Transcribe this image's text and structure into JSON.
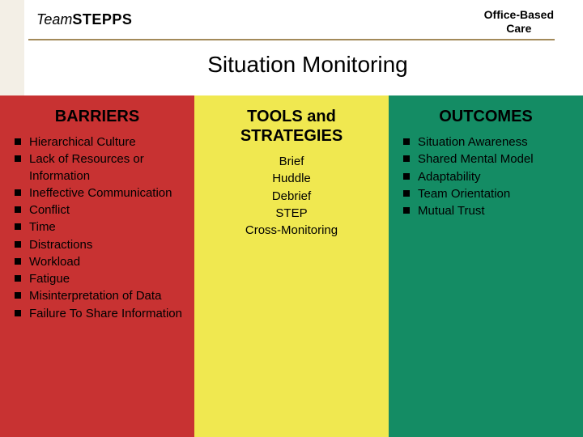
{
  "header": {
    "logo_team": "Team",
    "logo_stepps": "STEPPS",
    "right_line1": "Office-Based",
    "right_line2": "Care"
  },
  "title": "Situation Monitoring",
  "colors": {
    "barriers_bg": "#c83232",
    "tools_bg": "#f0e850",
    "outcomes_bg": "#148c64",
    "rule": "#a38a5a",
    "accent": "#f3efe6"
  },
  "columns": {
    "barriers": {
      "heading": "BARRIERS",
      "items": [
        "Hierarchical Culture",
        "Lack of Resources or Information",
        "Ineffective Communication",
        "Conflict",
        "Time",
        "Distractions",
        "Workload",
        "Fatigue",
        "Misinterpretation of Data",
        "Failure To Share Information"
      ]
    },
    "tools": {
      "heading_line1": "TOOLS and",
      "heading_line2": "STRATEGIES",
      "items": [
        "Brief",
        "Huddle",
        "Debrief",
        "STEP",
        "Cross-Monitoring"
      ]
    },
    "outcomes": {
      "heading": "OUTCOMES",
      "items": [
        "Situation Awareness",
        "Shared Mental Model",
        "Adaptability",
        "Team Orientation",
        "Mutual Trust"
      ]
    }
  }
}
